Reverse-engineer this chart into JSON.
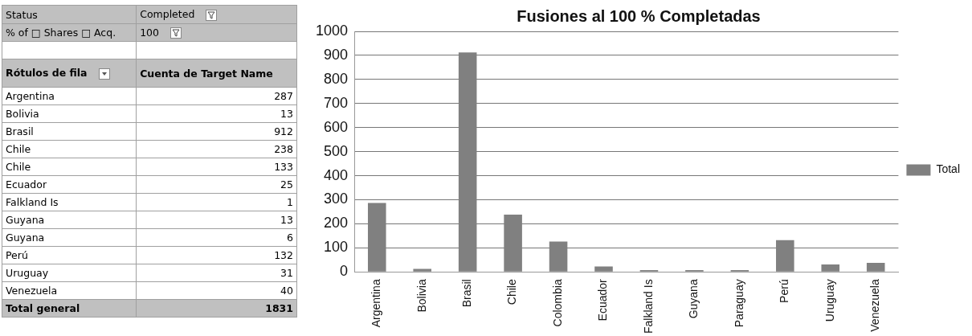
{
  "chart_data": [
    {
      "type": "other",
      "categories": [
        "Argentina",
        "Bolivia",
        "Brasil",
        "Chile",
        "Chile",
        "Ecuador",
        "Falkland Is",
        "Guyana",
        "Guyana",
        "Perú",
        "Uruguay",
        "Venezuela"
      ],
      "values": [
        287,
        13,
        912,
        238,
        133,
        25,
        1,
        13,
        6,
        132,
        31,
        40
      ],
      "data_labels": true,
      "annotations": [
        "Status",
        "Completed",
        "% of □ Shares □ Acq.",
        "100",
        "Rótulos de fila",
        "Cuenta de Target Name",
        "Total general",
        "1831"
      ]
    },
    {
      "type": "bar",
      "title": "Fusiones al 100 % Completadas",
      "categories": [
        "Argentina",
        "Bolivia",
        "Brasil",
        "Chile",
        "Colombia",
        "Ecuador",
        "Falkland Is",
        "Guyana",
        "Paraguay",
        "Perú",
        "Uruguay",
        "Venezuela"
      ],
      "series": [
        {
          "name": "Total",
          "color": "#808080",
          "values": [
            287,
            13,
            912,
            238,
            126,
            23,
            8,
            8,
            8,
            132,
            31,
            38
          ]
        }
      ],
      "ylim": [
        0,
        1000
      ],
      "yticks": [
        0,
        100,
        200,
        300,
        400,
        500,
        600,
        700,
        800,
        900,
        1000
      ],
      "grid": "y",
      "legend": "right"
    }
  ]
}
